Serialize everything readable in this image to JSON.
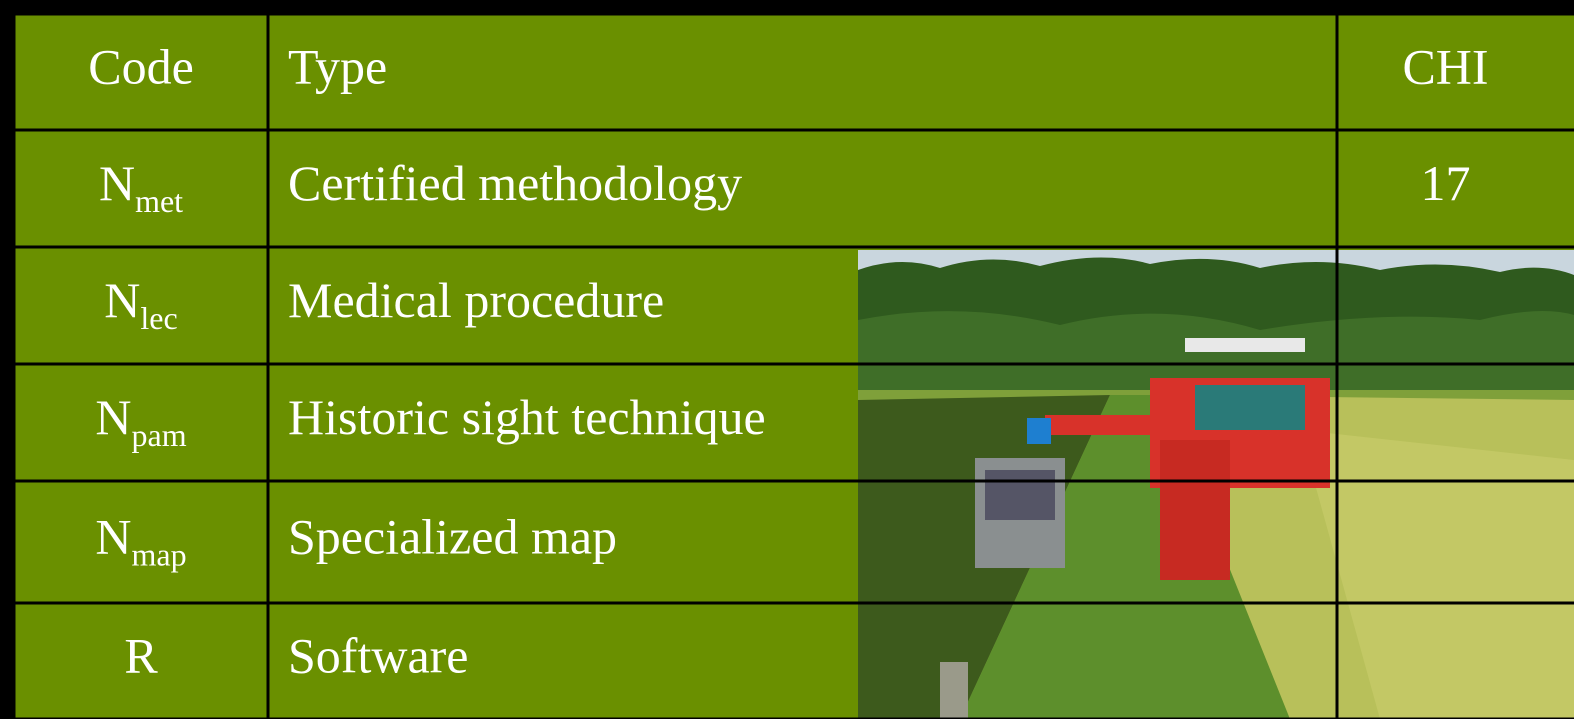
{
  "table": {
    "header": [
      "Code",
      "Type",
      "CHI"
    ],
    "rows": [
      {
        "code": "N",
        "sub": "met",
        "type": "Certified methodology",
        "chi": "17"
      },
      {
        "code": "N",
        "sub": "lec",
        "type": "Medical procedure"
      },
      {
        "code": "N",
        "sub": "pam",
        "type": "Historic sight technique"
      },
      {
        "code": "N",
        "sub": "map",
        "type": "Specialized map"
      },
      {
        "code": "R",
        "type": "Software"
      }
    ]
  }
}
